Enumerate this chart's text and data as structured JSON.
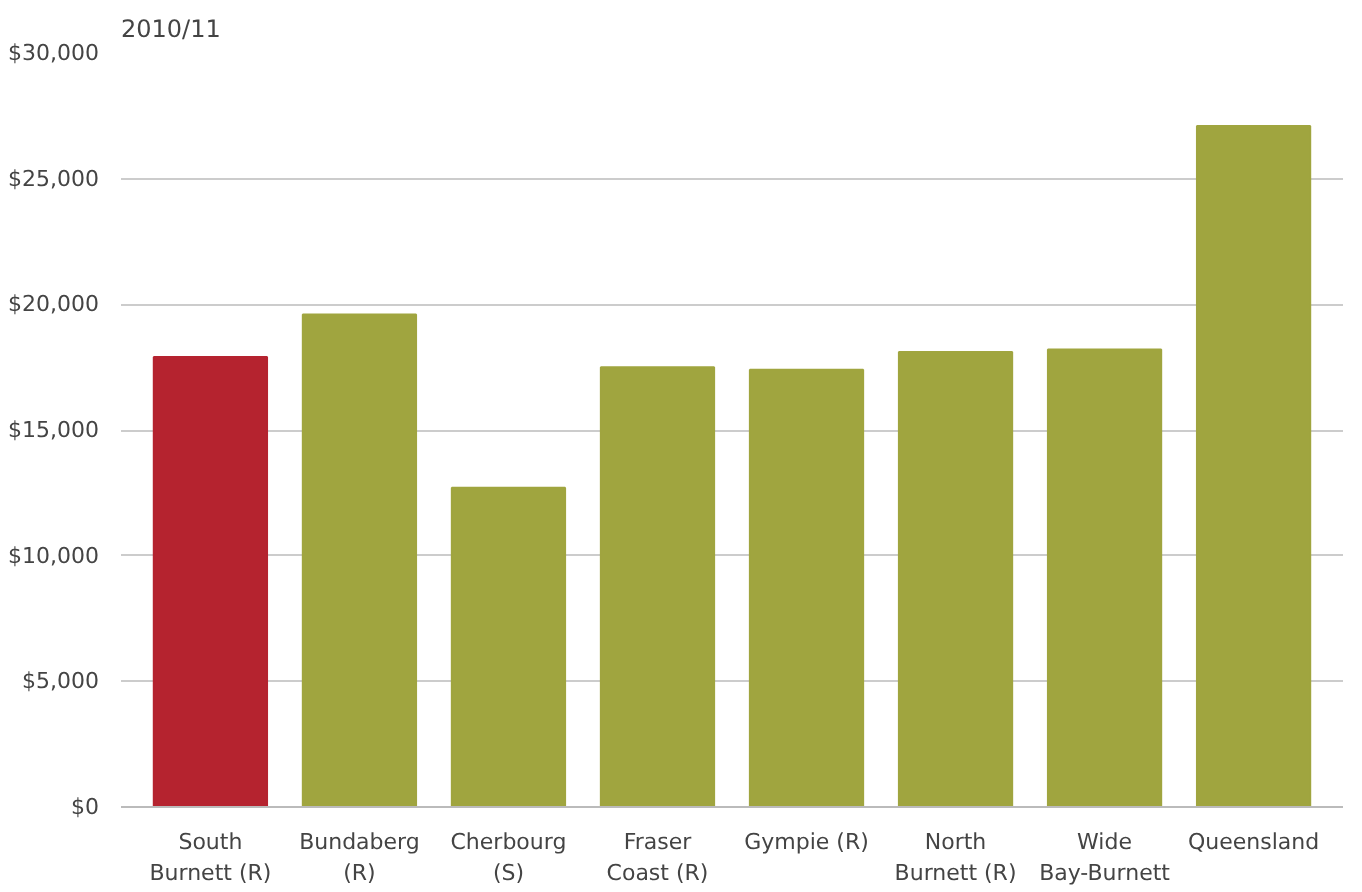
{
  "chart_data": {
    "type": "bar",
    "title": "2010/11",
    "categories": [
      "South Burnett (R)",
      "Bundaberg (R)",
      "Cherbourg (S)",
      "Fraser Coast (R)",
      "Gympie (R)",
      "North Burnett (R)",
      "Wide Bay-Burnett",
      "Queensland"
    ],
    "values": [
      17900,
      19600,
      12700,
      17500,
      17400,
      18100,
      18200,
      27100
    ],
    "colors": [
      "#b5232f",
      "#a0a53f",
      "#a0a53f",
      "#a0a53f",
      "#a0a53f",
      "#a0a53f",
      "#a0a53f",
      "#a0a53f"
    ],
    "ylim": [
      0,
      30000
    ],
    "yticks": [
      {
        "value": 0,
        "label": "$0"
      },
      {
        "value": 5000,
        "label": "$5,000"
      },
      {
        "value": 10000,
        "label": "$10,000"
      },
      {
        "value": 15000,
        "label": "$15,000"
      },
      {
        "value": 20000,
        "label": "$20,000"
      },
      {
        "value": 25000,
        "label": "$25,000"
      },
      {
        "value": 30000,
        "label": "$30,000"
      }
    ],
    "grid": "y"
  }
}
